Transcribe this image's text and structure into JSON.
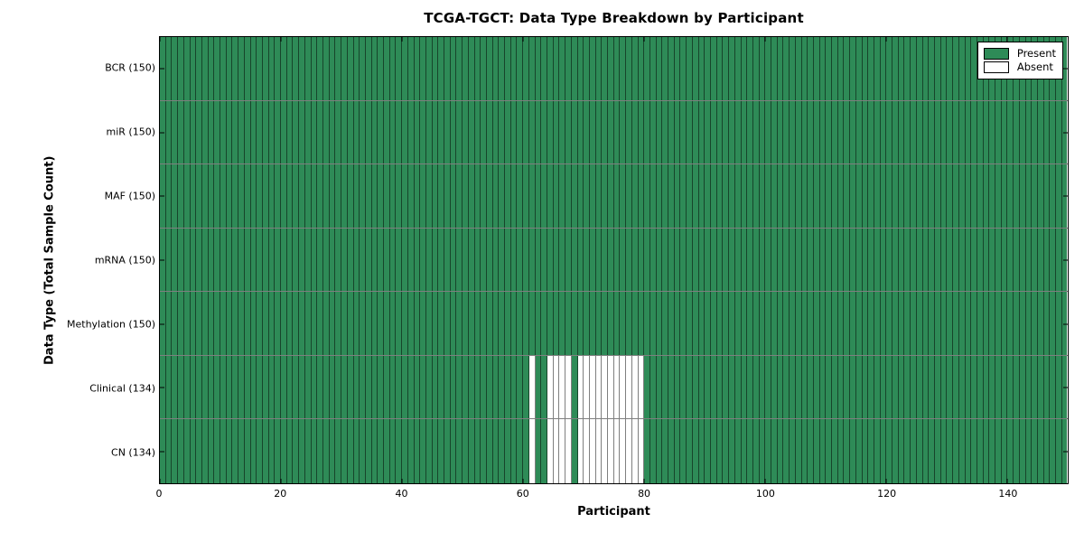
{
  "chart_data": {
    "type": "heatmap",
    "title": "TCGA-TGCT: Data Type Breakdown by Participant",
    "xlabel": "Participant",
    "ylabel": "Data Type (Total Sample Count)",
    "x_range": [
      0,
      150
    ],
    "x_ticks": [
      0,
      20,
      40,
      60,
      80,
      100,
      120,
      140
    ],
    "n_participants": 150,
    "grid": true,
    "legend_position": "upper right",
    "rows": [
      {
        "label": "BCR (150)",
        "data_type": "BCR",
        "total_sample_count": 150,
        "absent_participants": []
      },
      {
        "label": "miR (150)",
        "data_type": "miR",
        "total_sample_count": 150,
        "absent_participants": []
      },
      {
        "label": "MAF (150)",
        "data_type": "MAF",
        "total_sample_count": 150,
        "absent_participants": []
      },
      {
        "label": "mRNA (150)",
        "data_type": "mRNA",
        "total_sample_count": 150,
        "absent_participants": []
      },
      {
        "label": "Methylation (150)",
        "data_type": "Methylation",
        "total_sample_count": 150,
        "absent_participants": []
      },
      {
        "label": "Clinical (134)",
        "data_type": "Clinical",
        "total_sample_count": 134,
        "absent_participants": [
          61,
          64,
          65,
          66,
          67,
          69,
          70,
          71,
          72,
          73,
          74,
          75,
          76,
          77,
          78,
          79
        ]
      },
      {
        "label": "CN (134)",
        "data_type": "CN",
        "total_sample_count": 134,
        "absent_participants": [
          61,
          64,
          65,
          66,
          67,
          69,
          70,
          71,
          72,
          73,
          74,
          75,
          76,
          77,
          78,
          79
        ]
      }
    ],
    "legend": [
      {
        "label": "Present",
        "color": "#2e8b57"
      },
      {
        "label": "Absent",
        "color": "#ffffff"
      }
    ],
    "colors": {
      "present": "#2e8b57",
      "absent": "#ffffff",
      "gridline": "rgba(0,0,0,0.5)",
      "axis_border": "#000000",
      "background": "#ffffff"
    }
  }
}
